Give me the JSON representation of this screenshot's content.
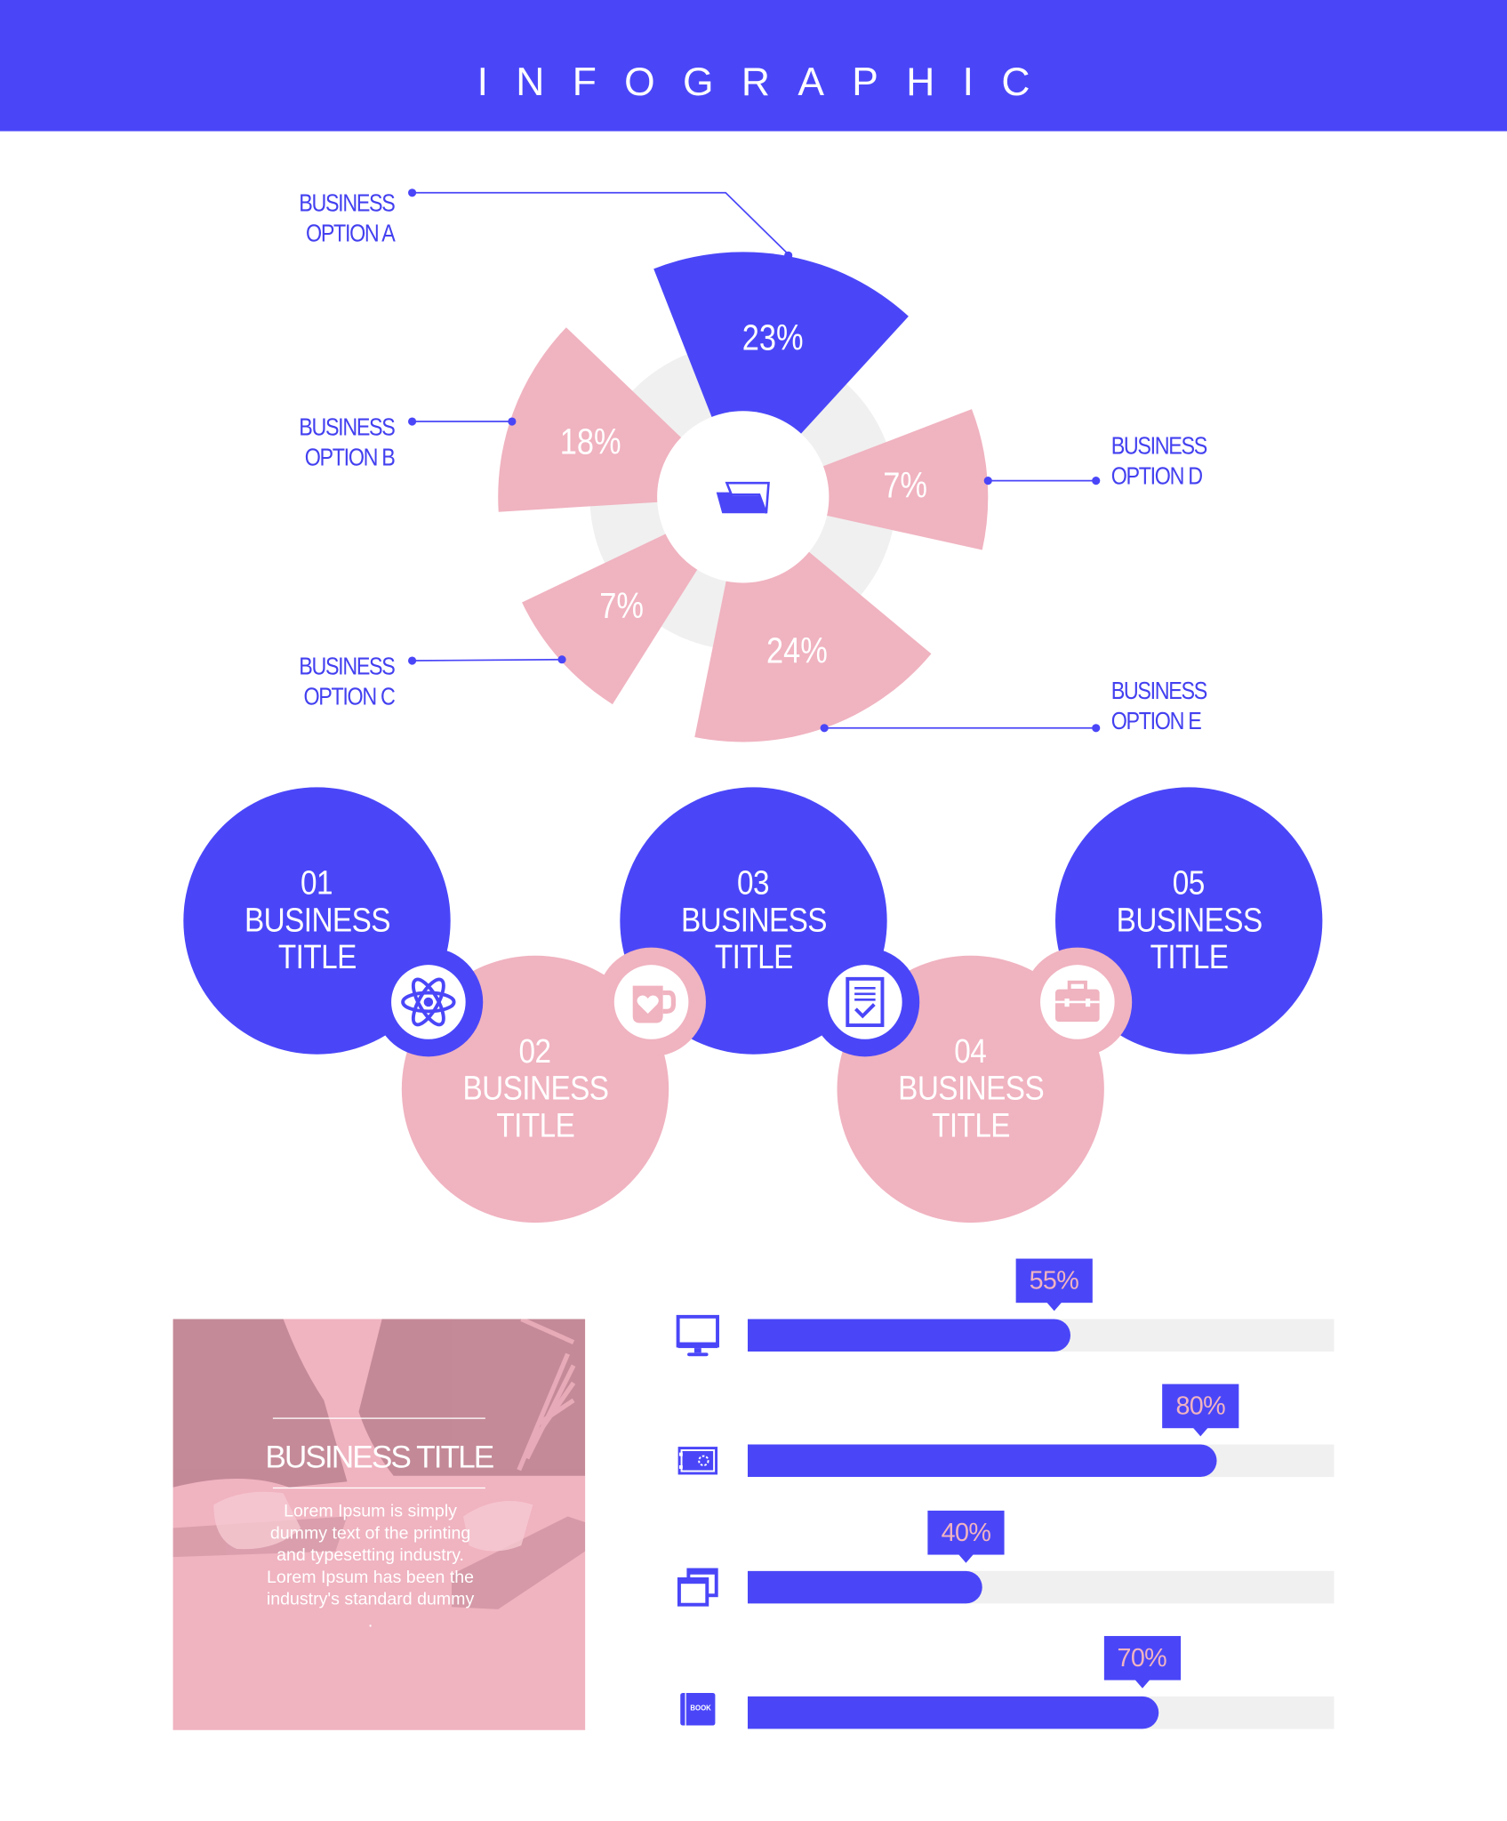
{
  "header": {
    "title": "INFOGRAPHIC"
  },
  "pie": {
    "center_icon": "folder-icon",
    "slices": [
      {
        "label_line1": "BUSINESS",
        "label_line2": "OPTION A",
        "value": "23%",
        "color": "#4a46f8"
      },
      {
        "label_line1": "BUSINESS",
        "label_line2": "OPTION D",
        "value": "7%",
        "color": "#f0b3c0"
      },
      {
        "label_line1": "BUSINESS",
        "label_line2": "OPTION E",
        "value": "24%",
        "color": "#f0b3c0"
      },
      {
        "label_line1": "BUSINESS",
        "label_line2": "OPTION C",
        "value": "7%",
        "color": "#f0b3c0"
      },
      {
        "label_line1": "BUSINESS",
        "label_line2": "OPTION B",
        "value": "18%",
        "color": "#f0b3c0"
      }
    ]
  },
  "steps": [
    {
      "num": "01",
      "line1": "BUSINESS",
      "line2": "TITLE",
      "icon": "atom-icon"
    },
    {
      "num": "02",
      "line1": "BUSINESS",
      "line2": "TITLE",
      "icon": "mug-heart-icon"
    },
    {
      "num": "03",
      "line1": "BUSINESS",
      "line2": "TITLE",
      "icon": "checklist-document-icon"
    },
    {
      "num": "04",
      "line1": "BUSINESS",
      "line2": "TITLE",
      "icon": "briefcase-icon"
    },
    {
      "num": "05",
      "line1": "BUSINESS",
      "line2": "TITLE"
    }
  ],
  "card": {
    "title": "BUSINESS TITLE",
    "body": "Lorem Ipsum is simply dummy text of the printing and typesetting industry. Lorem Ipsum has been the industry's standard dummy ."
  },
  "progress": [
    {
      "icon": "monitor-icon",
      "value": 55,
      "label": "55%"
    },
    {
      "icon": "safe-icon",
      "value": 80,
      "label": "80%"
    },
    {
      "icon": "windows-icon",
      "value": 40,
      "label": "40%"
    },
    {
      "icon": "book-icon",
      "value": 70,
      "label": "70%",
      "icon_text": "BOOK"
    }
  ],
  "colors": {
    "blue": "#4a46f8",
    "pink": "#f0b3c0",
    "track": "#f0f0f0"
  }
}
